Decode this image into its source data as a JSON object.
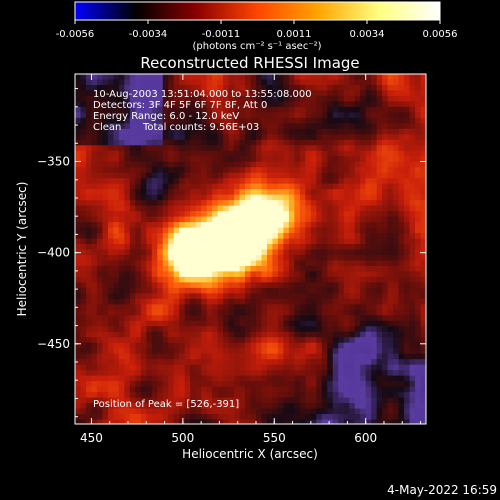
{
  "chart_data": {
    "type": "heatmap",
    "title": "Reconstructed RHESSI Image",
    "xlabel": "Heliocentric X (arcsec)",
    "ylabel": "Heliocentric Y (arcsec)",
    "xlim": [
      441,
      633
    ],
    "ylim": [
      -494,
      -302
    ],
    "xticks": [
      "450",
      "500",
      "550",
      "600"
    ],
    "yticks": [
      "-350",
      "-400",
      "-450"
    ],
    "colorbar": {
      "ticks": [
        "-0.0056",
        "-0.0034",
        "-0.0011",
        "0.0011",
        "0.0034",
        "0.0056"
      ],
      "range": [
        -0.0056,
        0.0056
      ],
      "unit": "(photons cm⁻² s⁻¹ asec⁻²)",
      "colormap": [
        "#0000ff",
        "#000000",
        "#8b0000",
        "#ff4500",
        "#ffa500",
        "#ffff80",
        "#ffffff"
      ]
    },
    "annotations": {
      "time": "10-Aug-2003 13:51:04.000 to 13:55:08.000",
      "detectors": "Detectors: 3F 4F 5F 6F 7F 8F, Att 0",
      "energy": "Energy Range: 6.0 - 12.0 keV",
      "clean": "Clean",
      "total_counts": "Total counts: 9.56E+03",
      "peak": "Position of Peak = [526,-391]"
    },
    "peak": [
      526,
      -391
    ]
  },
  "footer": {
    "date": "4-May-2022 16:59"
  }
}
